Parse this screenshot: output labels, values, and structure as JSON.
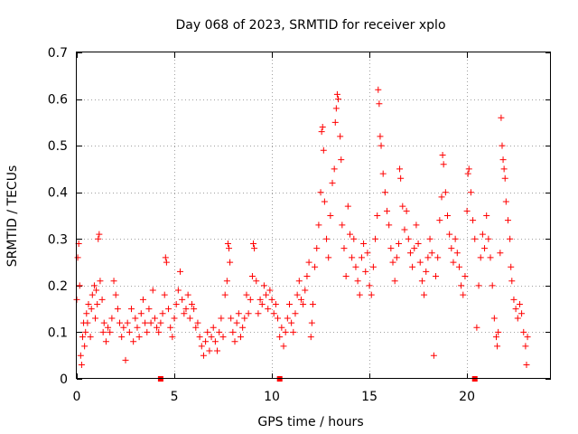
{
  "chart_data": {
    "type": "scatter",
    "title": "Day 068 of 2023, SRMTID for receiver xplo",
    "xlabel": "GPS time / hours",
    "ylabel": "SRMTID / TECUs",
    "xlim": [
      0,
      24.3
    ],
    "ylim": [
      0,
      0.7
    ],
    "x_ticks": [
      0,
      5,
      10,
      15,
      20
    ],
    "x_tick_labels": [
      "0",
      "5",
      "10",
      "15",
      "20"
    ],
    "y_ticks": [
      0,
      0.1,
      0.2,
      0.3,
      0.4,
      0.5,
      0.6,
      0.7
    ],
    "y_tick_labels": [
      "0",
      "0.1",
      "0.2",
      "0.3",
      "0.4",
      "0.5",
      "0.6",
      "0.7"
    ],
    "grid": true,
    "marker": "plus",
    "marker_color": "#ff0000",
    "gap_markers_x": [
      4.3,
      10.4,
      20.4
    ],
    "series": [
      {
        "name": "SRMTID",
        "points": [
          [
            0.0,
            0.17
          ],
          [
            0.05,
            0.26
          ],
          [
            0.1,
            0.29
          ],
          [
            0.15,
            0.2
          ],
          [
            0.2,
            0.05
          ],
          [
            0.25,
            0.03
          ],
          [
            0.3,
            0.09
          ],
          [
            0.35,
            0.12
          ],
          [
            0.4,
            0.07
          ],
          [
            0.45,
            0.1
          ],
          [
            0.5,
            0.14
          ],
          [
            0.55,
            0.12
          ],
          [
            0.6,
            0.16
          ],
          [
            0.7,
            0.09
          ],
          [
            0.75,
            0.15
          ],
          [
            0.8,
            0.18
          ],
          [
            0.9,
            0.2
          ],
          [
            0.95,
            0.13
          ],
          [
            1.0,
            0.19
          ],
          [
            1.05,
            0.16
          ],
          [
            1.1,
            0.3
          ],
          [
            1.15,
            0.31
          ],
          [
            1.2,
            0.21
          ],
          [
            1.3,
            0.17
          ],
          [
            1.35,
            0.1
          ],
          [
            1.4,
            0.12
          ],
          [
            1.5,
            0.08
          ],
          [
            1.6,
            0.11
          ],
          [
            1.7,
            0.1
          ],
          [
            1.8,
            0.13
          ],
          [
            1.9,
            0.21
          ],
          [
            2.0,
            0.18
          ],
          [
            2.1,
            0.15
          ],
          [
            2.2,
            0.12
          ],
          [
            2.3,
            0.09
          ],
          [
            2.4,
            0.11
          ],
          [
            2.5,
            0.04
          ],
          [
            2.6,
            0.12
          ],
          [
            2.7,
            0.1
          ],
          [
            2.8,
            0.15
          ],
          [
            2.9,
            0.08
          ],
          [
            3.0,
            0.13
          ],
          [
            3.1,
            0.11
          ],
          [
            3.2,
            0.09
          ],
          [
            3.3,
            0.14
          ],
          [
            3.4,
            0.17
          ],
          [
            3.5,
            0.12
          ],
          [
            3.6,
            0.1
          ],
          [
            3.7,
            0.15
          ],
          [
            3.8,
            0.12
          ],
          [
            3.9,
            0.19
          ],
          [
            4.0,
            0.13
          ],
          [
            4.1,
            0.11
          ],
          [
            4.2,
            0.1
          ],
          [
            4.3,
            0.12
          ],
          [
            4.4,
            0.14
          ],
          [
            4.5,
            0.18
          ],
          [
            4.55,
            0.26
          ],
          [
            4.6,
            0.25
          ],
          [
            4.7,
            0.15
          ],
          [
            4.8,
            0.11
          ],
          [
            4.9,
            0.09
          ],
          [
            5.0,
            0.13
          ],
          [
            5.1,
            0.16
          ],
          [
            5.2,
            0.19
          ],
          [
            5.3,
            0.23
          ],
          [
            5.4,
            0.17
          ],
          [
            5.5,
            0.14
          ],
          [
            5.6,
            0.15
          ],
          [
            5.7,
            0.18
          ],
          [
            5.8,
            0.13
          ],
          [
            5.9,
            0.16
          ],
          [
            6.0,
            0.15
          ],
          [
            6.1,
            0.11
          ],
          [
            6.2,
            0.12
          ],
          [
            6.3,
            0.09
          ],
          [
            6.4,
            0.07
          ],
          [
            6.5,
            0.05
          ],
          [
            6.6,
            0.08
          ],
          [
            6.7,
            0.1
          ],
          [
            6.8,
            0.06
          ],
          [
            6.9,
            0.09
          ],
          [
            7.0,
            0.11
          ],
          [
            7.1,
            0.08
          ],
          [
            7.2,
            0.06
          ],
          [
            7.3,
            0.1
          ],
          [
            7.4,
            0.13
          ],
          [
            7.5,
            0.09
          ],
          [
            7.6,
            0.18
          ],
          [
            7.7,
            0.21
          ],
          [
            7.75,
            0.29
          ],
          [
            7.8,
            0.28
          ],
          [
            7.85,
            0.25
          ],
          [
            7.9,
            0.13
          ],
          [
            8.0,
            0.1
          ],
          [
            8.1,
            0.08
          ],
          [
            8.2,
            0.12
          ],
          [
            8.3,
            0.14
          ],
          [
            8.4,
            0.09
          ],
          [
            8.5,
            0.11
          ],
          [
            8.6,
            0.13
          ],
          [
            8.7,
            0.18
          ],
          [
            8.8,
            0.14
          ],
          [
            8.9,
            0.17
          ],
          [
            9.0,
            0.22
          ],
          [
            9.05,
            0.29
          ],
          [
            9.1,
            0.28
          ],
          [
            9.2,
            0.21
          ],
          [
            9.3,
            0.14
          ],
          [
            9.4,
            0.17
          ],
          [
            9.5,
            0.16
          ],
          [
            9.6,
            0.2
          ],
          [
            9.7,
            0.18
          ],
          [
            9.8,
            0.15
          ],
          [
            9.9,
            0.19
          ],
          [
            10.0,
            0.17
          ],
          [
            10.1,
            0.14
          ],
          [
            10.2,
            0.16
          ],
          [
            10.3,
            0.13
          ],
          [
            10.4,
            0.09
          ],
          [
            10.5,
            0.11
          ],
          [
            10.6,
            0.07
          ],
          [
            10.7,
            0.1
          ],
          [
            10.8,
            0.13
          ],
          [
            10.9,
            0.16
          ],
          [
            11.0,
            0.12
          ],
          [
            11.1,
            0.1
          ],
          [
            11.2,
            0.14
          ],
          [
            11.3,
            0.18
          ],
          [
            11.4,
            0.21
          ],
          [
            11.5,
            0.17
          ],
          [
            11.6,
            0.16
          ],
          [
            11.7,
            0.19
          ],
          [
            11.8,
            0.22
          ],
          [
            11.9,
            0.25
          ],
          [
            12.0,
            0.09
          ],
          [
            12.05,
            0.12
          ],
          [
            12.1,
            0.16
          ],
          [
            12.2,
            0.24
          ],
          [
            12.3,
            0.28
          ],
          [
            12.4,
            0.33
          ],
          [
            12.5,
            0.4
          ],
          [
            12.55,
            0.53
          ],
          [
            12.6,
            0.54
          ],
          [
            12.65,
            0.49
          ],
          [
            12.7,
            0.38
          ],
          [
            12.8,
            0.3
          ],
          [
            12.9,
            0.26
          ],
          [
            13.0,
            0.35
          ],
          [
            13.1,
            0.42
          ],
          [
            13.2,
            0.45
          ],
          [
            13.25,
            0.55
          ],
          [
            13.3,
            0.58
          ],
          [
            13.35,
            0.61
          ],
          [
            13.4,
            0.6
          ],
          [
            13.5,
            0.52
          ],
          [
            13.55,
            0.47
          ],
          [
            13.6,
            0.33
          ],
          [
            13.7,
            0.28
          ],
          [
            13.8,
            0.22
          ],
          [
            13.9,
            0.37
          ],
          [
            14.0,
            0.31
          ],
          [
            14.1,
            0.26
          ],
          [
            14.2,
            0.3
          ],
          [
            14.3,
            0.24
          ],
          [
            14.4,
            0.21
          ],
          [
            14.5,
            0.18
          ],
          [
            14.6,
            0.26
          ],
          [
            14.7,
            0.29
          ],
          [
            14.8,
            0.23
          ],
          [
            14.9,
            0.27
          ],
          [
            15.0,
            0.2
          ],
          [
            15.1,
            0.18
          ],
          [
            15.2,
            0.24
          ],
          [
            15.3,
            0.3
          ],
          [
            15.4,
            0.35
          ],
          [
            15.45,
            0.62
          ],
          [
            15.5,
            0.59
          ],
          [
            15.55,
            0.52
          ],
          [
            15.6,
            0.5
          ],
          [
            15.7,
            0.44
          ],
          [
            15.8,
            0.4
          ],
          [
            15.9,
            0.36
          ],
          [
            16.0,
            0.33
          ],
          [
            16.1,
            0.28
          ],
          [
            16.2,
            0.25
          ],
          [
            16.3,
            0.21
          ],
          [
            16.4,
            0.26
          ],
          [
            16.5,
            0.29
          ],
          [
            16.55,
            0.45
          ],
          [
            16.6,
            0.43
          ],
          [
            16.7,
            0.37
          ],
          [
            16.8,
            0.32
          ],
          [
            16.9,
            0.36
          ],
          [
            17.0,
            0.3
          ],
          [
            17.1,
            0.27
          ],
          [
            17.2,
            0.24
          ],
          [
            17.3,
            0.28
          ],
          [
            17.4,
            0.33
          ],
          [
            17.5,
            0.29
          ],
          [
            17.6,
            0.25
          ],
          [
            17.7,
            0.21
          ],
          [
            17.8,
            0.18
          ],
          [
            17.9,
            0.23
          ],
          [
            18.0,
            0.26
          ],
          [
            18.1,
            0.3
          ],
          [
            18.2,
            0.27
          ],
          [
            18.3,
            0.05
          ],
          [
            18.4,
            0.22
          ],
          [
            18.5,
            0.26
          ],
          [
            18.6,
            0.34
          ],
          [
            18.7,
            0.39
          ],
          [
            18.75,
            0.48
          ],
          [
            18.8,
            0.46
          ],
          [
            18.9,
            0.4
          ],
          [
            19.0,
            0.35
          ],
          [
            19.1,
            0.31
          ],
          [
            19.2,
            0.28
          ],
          [
            19.3,
            0.25
          ],
          [
            19.4,
            0.3
          ],
          [
            19.5,
            0.27
          ],
          [
            19.6,
            0.24
          ],
          [
            19.7,
            0.2
          ],
          [
            19.8,
            0.18
          ],
          [
            19.9,
            0.22
          ],
          [
            20.0,
            0.36
          ],
          [
            20.05,
            0.44
          ],
          [
            20.1,
            0.45
          ],
          [
            20.2,
            0.4
          ],
          [
            20.3,
            0.34
          ],
          [
            20.4,
            0.3
          ],
          [
            20.5,
            0.11
          ],
          [
            20.6,
            0.2
          ],
          [
            20.7,
            0.26
          ],
          [
            20.8,
            0.31
          ],
          [
            20.9,
            0.28
          ],
          [
            21.0,
            0.35
          ],
          [
            21.1,
            0.3
          ],
          [
            21.2,
            0.26
          ],
          [
            21.3,
            0.2
          ],
          [
            21.4,
            0.13
          ],
          [
            21.5,
            0.09
          ],
          [
            21.55,
            0.07
          ],
          [
            21.6,
            0.1
          ],
          [
            21.7,
            0.27
          ],
          [
            21.75,
            0.56
          ],
          [
            21.8,
            0.5
          ],
          [
            21.85,
            0.47
          ],
          [
            21.9,
            0.45
          ],
          [
            21.95,
            0.43
          ],
          [
            22.0,
            0.38
          ],
          [
            22.1,
            0.34
          ],
          [
            22.2,
            0.3
          ],
          [
            22.25,
            0.24
          ],
          [
            22.3,
            0.21
          ],
          [
            22.4,
            0.17
          ],
          [
            22.5,
            0.15
          ],
          [
            22.6,
            0.13
          ],
          [
            22.7,
            0.16
          ],
          [
            22.8,
            0.14
          ],
          [
            22.9,
            0.1
          ],
          [
            23.0,
            0.07
          ],
          [
            23.05,
            0.03
          ],
          [
            23.1,
            0.09
          ]
        ]
      }
    ]
  }
}
